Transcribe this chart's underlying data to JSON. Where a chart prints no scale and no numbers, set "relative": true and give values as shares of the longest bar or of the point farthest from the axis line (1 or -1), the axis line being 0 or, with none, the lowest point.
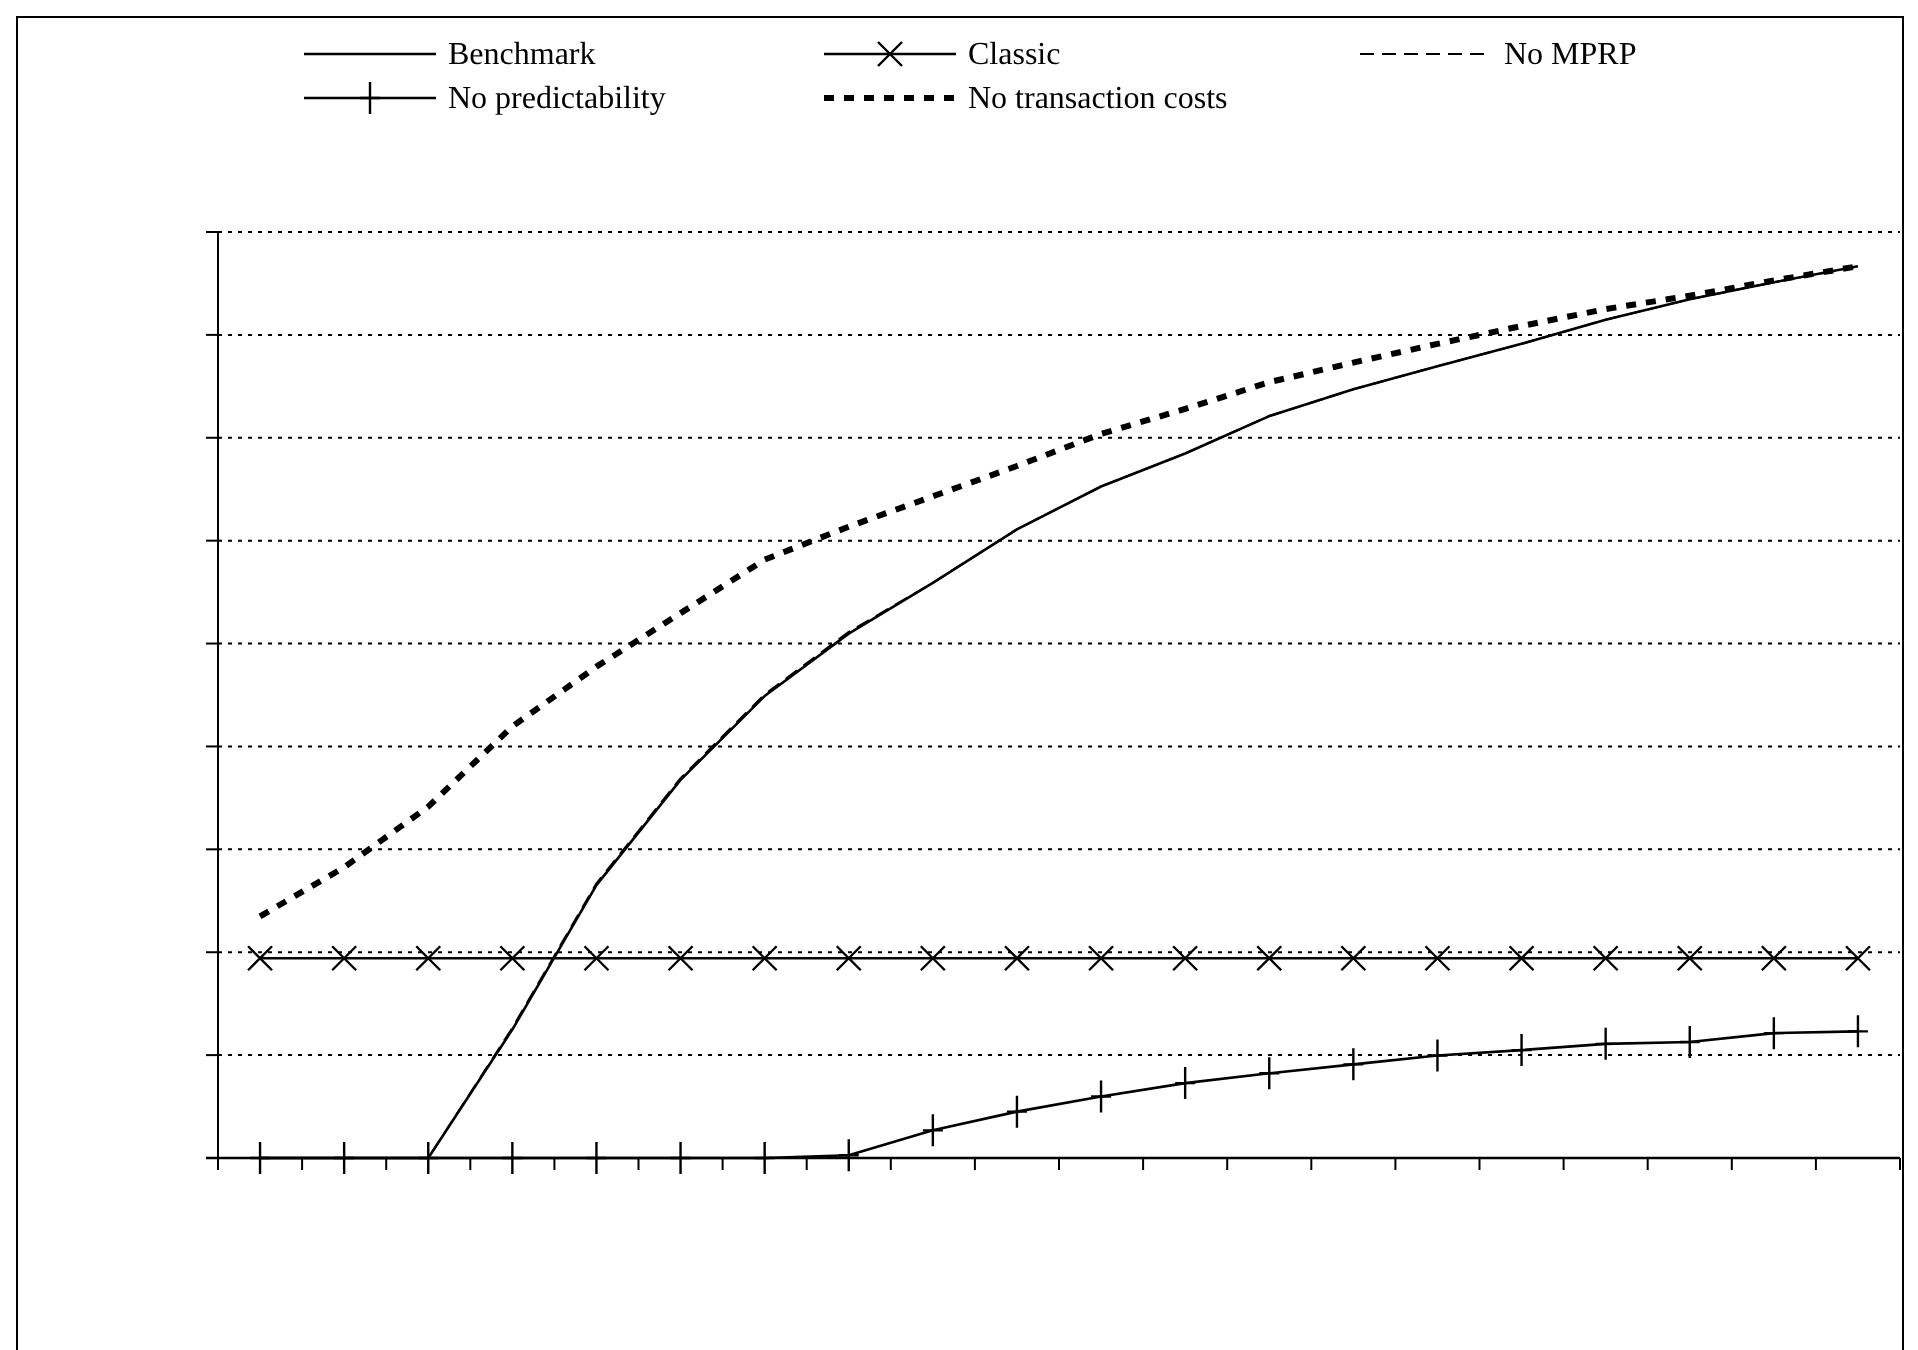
{
  "chart_data": {
    "type": "line",
    "relative": true,
    "categories": [
      null,
      null,
      null,
      null,
      null,
      null,
      null,
      null,
      null,
      null,
      null,
      null,
      null,
      null,
      null,
      null,
      null,
      null,
      null,
      null
    ],
    "grid": "y",
    "legend": "top",
    "series": [
      {
        "name": "Benchmark",
        "color": "#000000",
        "line_style": "solid",
        "marker": "none",
        "values": [
          0,
          0,
          0,
          0.144,
          0.306,
          0.424,
          0.518,
          0.588,
          0.645,
          0.705,
          0.753,
          0.79,
          0.832,
          0.862,
          0.888,
          0.913,
          0.94,
          0.963,
          0.982,
          1
        ]
      },
      {
        "name": "Classic",
        "color": "#000000",
        "line_style": "solid",
        "marker": "cross",
        "values": [
          0.224,
          0.224,
          0.224,
          0.224,
          0.224,
          0.224,
          0.224,
          0.224,
          0.224,
          0.224,
          0.224,
          0.224,
          0.224,
          0.224,
          0.224,
          0.224,
          0.224,
          0.224,
          0.224,
          0.224
        ]
      },
      {
        "name": "No MPRP",
        "color": "#000000",
        "line_style": "dashed",
        "marker": "none",
        "values": [
          0,
          0,
          0,
          0.146,
          0.308,
          0.426,
          0.52,
          0.59,
          0.645,
          0.705,
          0.753,
          0.79,
          0.832,
          0.862,
          0.888,
          0.913,
          0.94,
          0.963,
          0.982,
          1
        ]
      },
      {
        "name": "No predictability",
        "color": "#000000",
        "line_style": "solid",
        "marker": "plus",
        "values": [
          0,
          0,
          0,
          0,
          0,
          0,
          0,
          0.003,
          0.031,
          0.052,
          0.069,
          0.084,
          0.095,
          0.105,
          0.115,
          0.121,
          0.128,
          0.13,
          0.14,
          0.142
        ]
      },
      {
        "name": "No transaction costs",
        "color": "#000000",
        "line_style": "dotted",
        "marker": "none",
        "values": [
          0.271,
          0.326,
          0.394,
          0.484,
          0.551,
          0.611,
          0.671,
          0.708,
          0.742,
          0.776,
          0.812,
          0.84,
          0.87,
          0.892,
          0.913,
          0.933,
          0.952,
          0.967,
          0.984,
          1
        ]
      }
    ]
  }
}
